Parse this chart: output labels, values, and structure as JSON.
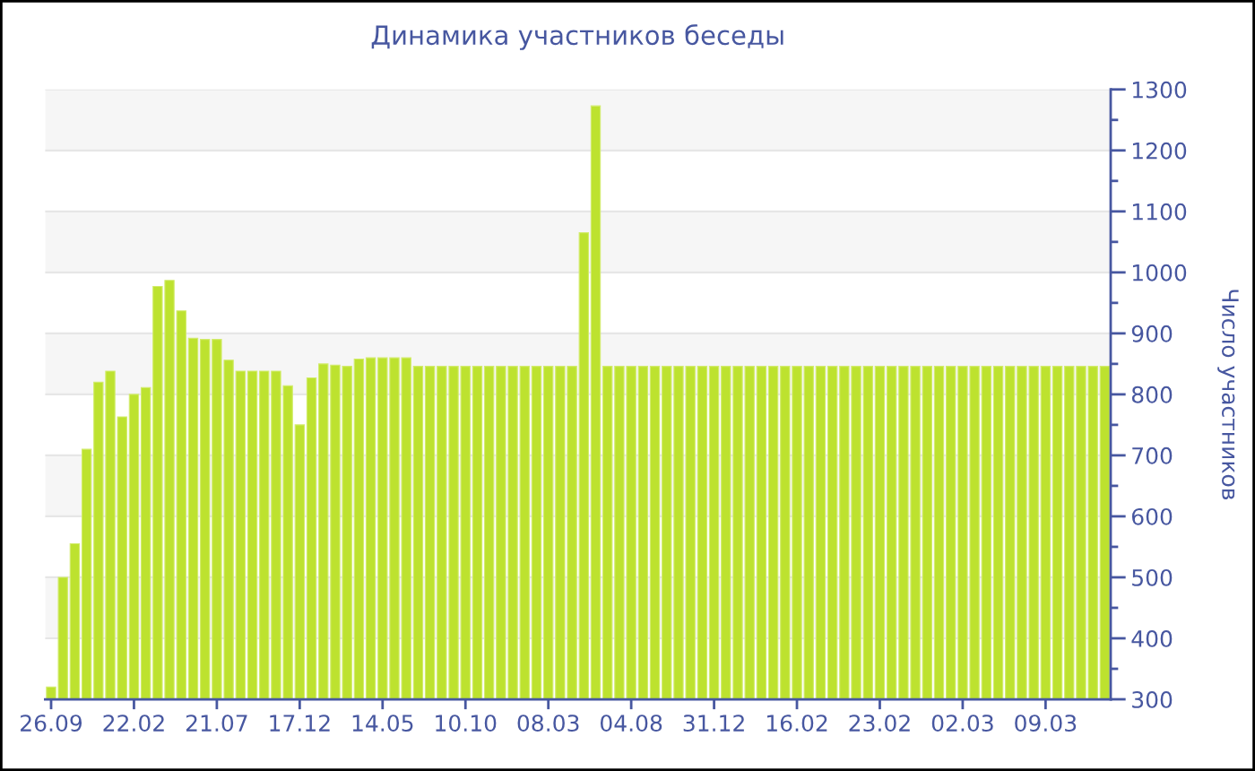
{
  "chart_data": {
    "type": "bar",
    "title": "Динамика участников беседы",
    "ylabel": "Число участников",
    "categories": [
      "26.09",
      null,
      null,
      null,
      null,
      null,
      null,
      "22.02",
      null,
      null,
      null,
      null,
      null,
      null,
      "21.07",
      null,
      null,
      null,
      null,
      null,
      null,
      "17.12",
      null,
      null,
      null,
      null,
      null,
      null,
      "14.05",
      null,
      null,
      null,
      null,
      null,
      null,
      "10.10",
      null,
      null,
      null,
      null,
      null,
      null,
      "08.03",
      null,
      null,
      null,
      null,
      null,
      null,
      "04.08",
      null,
      null,
      null,
      null,
      null,
      null,
      "31.12",
      null,
      null,
      null,
      null,
      null,
      null,
      "16.02",
      null,
      null,
      null,
      null,
      null,
      null,
      "23.02",
      null,
      null,
      null,
      null,
      null,
      null,
      "02.03",
      null,
      null,
      null,
      null,
      null,
      null,
      "09.03",
      null,
      null,
      null,
      null,
      null
    ],
    "values": [
      320,
      500,
      555,
      710,
      820,
      838,
      763,
      800,
      811,
      977,
      987,
      937,
      892,
      890,
      890,
      856,
      838,
      838,
      838,
      838,
      814,
      750,
      827,
      850,
      848,
      846,
      858,
      860,
      860,
      860,
      860,
      846,
      846,
      846,
      846,
      846,
      846,
      846,
      846,
      846,
      846,
      846,
      846,
      846,
      846,
      1065,
      1273,
      846,
      846,
      846,
      846,
      846,
      846,
      846,
      846,
      846,
      846,
      846,
      846,
      846,
      846,
      846,
      846,
      846,
      846,
      846,
      846,
      846,
      846,
      846,
      846,
      846,
      846,
      846,
      846,
      846,
      846,
      846,
      846,
      846,
      846,
      846,
      846,
      846,
      846,
      846,
      846,
      846,
      846,
      846
    ],
    "color": "#bde22f",
    "ylim": [
      300,
      1300
    ],
    "yticks": [
      300,
      400,
      500,
      600,
      700,
      800,
      900,
      1000,
      1100,
      1200,
      1300
    ],
    "grid": "y"
  }
}
